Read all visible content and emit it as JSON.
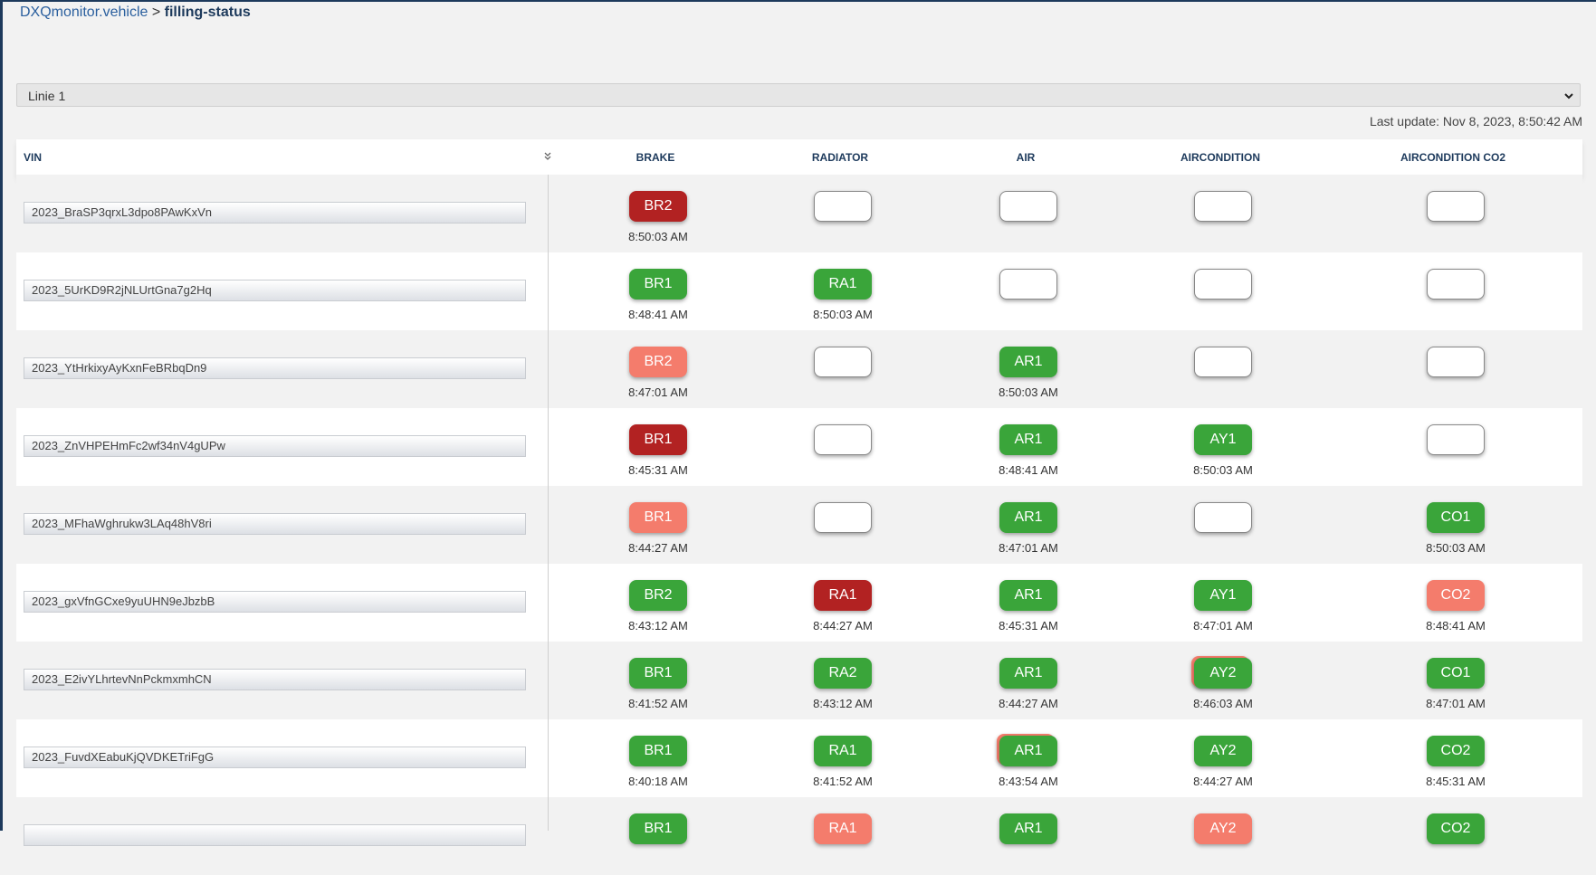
{
  "breadcrumb": {
    "parent": "DXQmonitor.vehicle",
    "separator": ">",
    "current": "filling-status"
  },
  "line_select": "Linie 1",
  "last_update": "Last update: Nov 8, 2023, 8:50:42 AM",
  "table": {
    "columns": [
      "VIN",
      "BRAKE",
      "RADIATOR",
      "AIR",
      "AIRCONDITION",
      "AIRCONDITION CO2"
    ],
    "rows": [
      {
        "vin": "2023_BraSP3qrxL3dpo8PAwKxVn",
        "cells": [
          {
            "label": "BR2",
            "status": "dark-red",
            "time": "8:50:03 AM"
          },
          {
            "status": "empty"
          },
          {
            "status": "empty"
          },
          {
            "status": "empty"
          },
          {
            "status": "empty"
          }
        ]
      },
      {
        "vin": "2023_5UrKD9R2jNLUrtGna7g2Hq",
        "cells": [
          {
            "label": "BR1",
            "status": "green",
            "time": "8:48:41 AM"
          },
          {
            "label": "RA1",
            "status": "green",
            "time": "8:50:03 AM"
          },
          {
            "status": "empty"
          },
          {
            "status": "empty"
          },
          {
            "status": "empty"
          }
        ]
      },
      {
        "vin": "2023_YtHrkixyAyKxnFeBRbqDn9",
        "cells": [
          {
            "label": "BR2",
            "status": "light-red",
            "time": "8:47:01 AM"
          },
          {
            "status": "empty"
          },
          {
            "label": "AR1",
            "status": "green",
            "time": "8:50:03 AM"
          },
          {
            "status": "empty"
          },
          {
            "status": "empty"
          }
        ]
      },
      {
        "vin": "2023_ZnVHPEHmFc2wf34nV4gUPw",
        "cells": [
          {
            "label": "BR1",
            "status": "dark-red",
            "time": "8:45:31 AM"
          },
          {
            "status": "empty"
          },
          {
            "label": "AR1",
            "status": "green",
            "time": "8:48:41 AM"
          },
          {
            "label": "AY1",
            "status": "green",
            "time": "8:50:03 AM"
          },
          {
            "status": "empty"
          }
        ]
      },
      {
        "vin": "2023_MFhaWghrukw3LAq48hV8ri",
        "cells": [
          {
            "label": "BR1",
            "status": "light-red",
            "time": "8:44:27 AM"
          },
          {
            "status": "empty"
          },
          {
            "label": "AR1",
            "status": "green",
            "time": "8:47:01 AM"
          },
          {
            "status": "empty"
          },
          {
            "label": "CO1",
            "status": "green",
            "time": "8:50:03 AM"
          }
        ]
      },
      {
        "vin": "2023_gxVfnGCxe9yuUHN9eJbzbB",
        "cells": [
          {
            "label": "BR2",
            "status": "green",
            "time": "8:43:12 AM"
          },
          {
            "label": "RA1",
            "status": "dark-red",
            "time": "8:44:27 AM"
          },
          {
            "label": "AR1",
            "status": "green",
            "time": "8:45:31 AM"
          },
          {
            "label": "AY1",
            "status": "green",
            "time": "8:47:01 AM"
          },
          {
            "label": "CO2",
            "status": "light-red",
            "time": "8:48:41 AM"
          }
        ]
      },
      {
        "vin": "2023_E2ivYLhrtevNnPckmxmhCN",
        "cells": [
          {
            "label": "BR1",
            "status": "green",
            "time": "8:41:52 AM"
          },
          {
            "label": "RA2",
            "status": "green",
            "time": "8:43:12 AM"
          },
          {
            "label": "AR1",
            "status": "green",
            "time": "8:44:27 AM"
          },
          {
            "label": "AY2",
            "status": "green",
            "behind": "light-red",
            "time": "8:46:03 AM"
          },
          {
            "label": "CO1",
            "status": "green",
            "time": "8:47:01 AM"
          }
        ]
      },
      {
        "vin": "2023_FuvdXEabuKjQVDKETriFgG",
        "cells": [
          {
            "label": "BR1",
            "status": "green",
            "time": "8:40:18 AM"
          },
          {
            "label": "RA1",
            "status": "green",
            "time": "8:41:52 AM"
          },
          {
            "label": "AR1",
            "status": "green",
            "behind": "light-red",
            "time": "8:43:54 AM"
          },
          {
            "label": "AY2",
            "status": "green",
            "time": "8:44:27 AM"
          },
          {
            "label": "CO2",
            "status": "green",
            "time": "8:45:31 AM"
          }
        ]
      },
      {
        "cells": [
          {
            "label": "BR1",
            "status": "green"
          },
          {
            "label": "RA1",
            "status": "light-red"
          },
          {
            "label": "AR1",
            "status": "green"
          },
          {
            "label": "AY2",
            "status": "light-red"
          },
          {
            "label": "CO2",
            "status": "green"
          }
        ]
      }
    ]
  }
}
